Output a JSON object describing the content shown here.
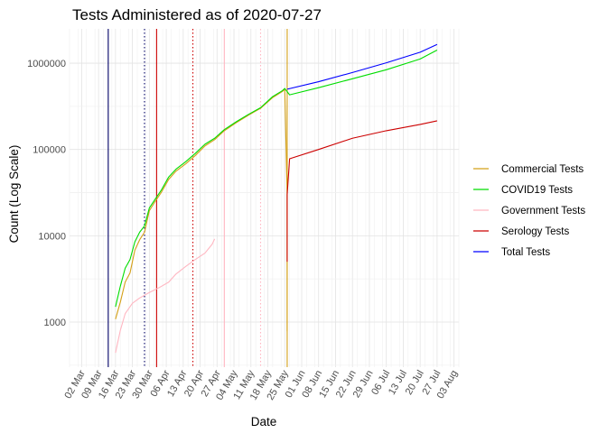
{
  "chart_data": {
    "type": "line",
    "title": "Tests Administered as of 2020-07-27",
    "xlabel": "Date",
    "ylabel": "Count (Log Scale)",
    "y_scale": "log10",
    "ylim": [
      300,
      2500000
    ],
    "xlim": [
      "2020-02-26",
      "2020-08-05"
    ],
    "grid": true,
    "legend_position": "right",
    "x_ticks": [
      {
        "date": "2020-03-02",
        "label": "02 Mar"
      },
      {
        "date": "2020-03-09",
        "label": "09 Mar"
      },
      {
        "date": "2020-03-16",
        "label": "16 Mar"
      },
      {
        "date": "2020-03-23",
        "label": "23 Mar"
      },
      {
        "date": "2020-03-30",
        "label": "30 Mar"
      },
      {
        "date": "2020-04-06",
        "label": "06 Apr"
      },
      {
        "date": "2020-04-13",
        "label": "13 Apr"
      },
      {
        "date": "2020-04-20",
        "label": "20 Apr"
      },
      {
        "date": "2020-04-27",
        "label": "27 Apr"
      },
      {
        "date": "2020-05-04",
        "label": "04 May"
      },
      {
        "date": "2020-05-11",
        "label": "11 May"
      },
      {
        "date": "2020-05-18",
        "label": "18 May"
      },
      {
        "date": "2020-05-25",
        "label": "25 May"
      },
      {
        "date": "2020-06-01",
        "label": "01 Jun"
      },
      {
        "date": "2020-06-08",
        "label": "08 Jun"
      },
      {
        "date": "2020-06-15",
        "label": "15 Jun"
      },
      {
        "date": "2020-06-22",
        "label": "22 Jun"
      },
      {
        "date": "2020-06-29",
        "label": "29 Jun"
      },
      {
        "date": "2020-07-06",
        "label": "06 Jul"
      },
      {
        "date": "2020-07-13",
        "label": "13 Jul"
      },
      {
        "date": "2020-07-20",
        "label": "20 Jul"
      },
      {
        "date": "2020-07-27",
        "label": "27 Jul"
      },
      {
        "date": "2020-08-03",
        "label": "03 Aug"
      }
    ],
    "y_ticks": [
      {
        "value": 1000,
        "label": "1000"
      },
      {
        "value": 10000,
        "label": "10000"
      },
      {
        "value": 100000,
        "label": "100000"
      },
      {
        "value": 1000000,
        "label": "1000000"
      }
    ],
    "series": [
      {
        "name": "Commercial Tests",
        "color": "#d4a017",
        "points": [
          [
            "2020-03-16",
            1080
          ],
          [
            "2020-03-18",
            1700
          ],
          [
            "2020-03-20",
            2900
          ],
          [
            "2020-03-22",
            3700
          ],
          [
            "2020-03-24",
            6800
          ],
          [
            "2020-03-26",
            9000
          ],
          [
            "2020-03-28",
            11000
          ],
          [
            "2020-03-30",
            19500
          ],
          [
            "2020-04-01",
            24000
          ],
          [
            "2020-04-04",
            32000
          ],
          [
            "2020-04-07",
            45000
          ],
          [
            "2020-04-10",
            56000
          ],
          [
            "2020-04-14",
            68000
          ],
          [
            "2020-04-18",
            85000
          ],
          [
            "2020-04-22",
            110000
          ],
          [
            "2020-04-26",
            130000
          ],
          [
            "2020-04-30",
            165000
          ],
          [
            "2020-05-05",
            205000
          ],
          [
            "2020-05-10",
            250000
          ],
          [
            "2020-05-15",
            300000
          ],
          [
            "2020-05-20",
            400000
          ],
          [
            "2020-05-24",
            470000
          ],
          [
            "2020-05-25",
            500000
          ],
          [
            "2020-05-26",
            30000
          ],
          [
            "2020-05-26",
            780
          ]
        ]
      },
      {
        "name": "COVID19 Tests",
        "color": "#00dd00",
        "points": [
          [
            "2020-03-16",
            1500
          ],
          [
            "2020-03-18",
            2600
          ],
          [
            "2020-03-20",
            4200
          ],
          [
            "2020-03-22",
            5300
          ],
          [
            "2020-03-24",
            8500
          ],
          [
            "2020-03-26",
            11000
          ],
          [
            "2020-03-28",
            13000
          ],
          [
            "2020-03-30",
            21000
          ],
          [
            "2020-04-01",
            25500
          ],
          [
            "2020-04-04",
            34000
          ],
          [
            "2020-04-07",
            48000
          ],
          [
            "2020-04-10",
            59000
          ],
          [
            "2020-04-14",
            72000
          ],
          [
            "2020-04-18",
            90000
          ],
          [
            "2020-04-22",
            115000
          ],
          [
            "2020-04-26",
            135000
          ],
          [
            "2020-04-30",
            170000
          ],
          [
            "2020-05-05",
            210000
          ],
          [
            "2020-05-10",
            255000
          ],
          [
            "2020-05-15",
            305000
          ],
          [
            "2020-05-20",
            410000
          ],
          [
            "2020-05-24",
            480000
          ],
          [
            "2020-05-25",
            510000
          ],
          [
            "2020-05-27",
            430000
          ],
          [
            "2020-06-08",
            520000
          ],
          [
            "2020-06-22",
            660000
          ],
          [
            "2020-07-06",
            840000
          ],
          [
            "2020-07-20",
            1120000
          ],
          [
            "2020-07-27",
            1420000
          ]
        ]
      },
      {
        "name": "Government Tests",
        "color": "#ffb6c1",
        "points": [
          [
            "2020-03-16",
            440
          ],
          [
            "2020-03-18",
            800
          ],
          [
            "2020-03-20",
            1250
          ],
          [
            "2020-03-23",
            1650
          ],
          [
            "2020-03-26",
            1900
          ],
          [
            "2020-03-30",
            2200
          ],
          [
            "2020-04-03",
            2500
          ],
          [
            "2020-04-07",
            2900
          ],
          [
            "2020-04-10",
            3600
          ],
          [
            "2020-04-14",
            4400
          ],
          [
            "2020-04-18",
            5300
          ],
          [
            "2020-04-22",
            6300
          ],
          [
            "2020-04-25",
            8000
          ],
          [
            "2020-04-26",
            9200
          ]
        ]
      },
      {
        "name": "Serology Tests",
        "color": "#cc0000",
        "points": [
          [
            "2020-05-26",
            5000
          ],
          [
            "2020-05-26",
            30000
          ],
          [
            "2020-05-27",
            78000
          ],
          [
            "2020-06-08",
            100000
          ],
          [
            "2020-06-22",
            135000
          ],
          [
            "2020-07-06",
            165000
          ],
          [
            "2020-07-20",
            195000
          ],
          [
            "2020-07-27",
            215000
          ]
        ]
      },
      {
        "name": "Total Tests",
        "color": "#0000ff",
        "points": [
          [
            "2020-05-26",
            500000
          ],
          [
            "2020-06-08",
            610000
          ],
          [
            "2020-06-22",
            780000
          ],
          [
            "2020-07-06",
            1010000
          ],
          [
            "2020-07-20",
            1340000
          ],
          [
            "2020-07-27",
            1650000
          ]
        ]
      }
    ],
    "reference_lines": [
      {
        "date": "2020-03-13",
        "color": "#000066",
        "style": "solid"
      },
      {
        "date": "2020-03-28",
        "color": "#000066",
        "style": "dotted"
      },
      {
        "date": "2020-04-02",
        "color": "#cc0000",
        "style": "solid"
      },
      {
        "date": "2020-04-17",
        "color": "#cc0000",
        "style": "dotted"
      },
      {
        "date": "2020-04-30",
        "color": "#ffb6c1",
        "style": "solid"
      },
      {
        "date": "2020-05-15",
        "color": "#ffb6c1",
        "style": "dotted"
      },
      {
        "date": "2020-05-26",
        "color": "#d4a017",
        "style": "solid"
      }
    ]
  }
}
